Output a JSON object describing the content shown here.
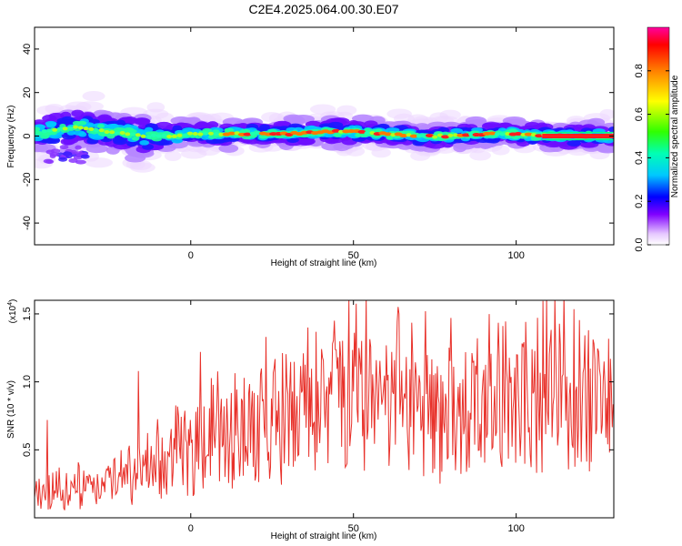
{
  "title": "C2E4.2025.064.00.30.E07",
  "chart_data": [
    {
      "type": "heatmap",
      "name": "spectrogram",
      "xlabel": "Height of straight line (km)",
      "ylabel": "Frequency (Hz)",
      "xlim": [
        -48,
        130
      ],
      "ylim": [
        -50,
        50
      ],
      "xticks": [
        0,
        50,
        100
      ],
      "yticks": [
        -40,
        -20,
        0,
        20,
        40
      ],
      "ridge_frequency": [
        [
          -45,
          2
        ],
        [
          -40,
          3
        ],
        [
          -35,
          4
        ],
        [
          -30,
          3
        ],
        [
          -25,
          2
        ],
        [
          -20,
          1
        ],
        [
          -15,
          0
        ],
        [
          -10,
          0
        ],
        [
          -5,
          0
        ],
        [
          0,
          1
        ],
        [
          10,
          1
        ],
        [
          20,
          1
        ],
        [
          30,
          1
        ],
        [
          40,
          2
        ],
        [
          50,
          2
        ],
        [
          60,
          1
        ],
        [
          70,
          0
        ],
        [
          80,
          0
        ],
        [
          90,
          1
        ],
        [
          100,
          1
        ],
        [
          110,
          0
        ],
        [
          120,
          0
        ],
        [
          130,
          0
        ]
      ],
      "colorbar": {
        "label": "Normalized spectral amplitude",
        "range": [
          0,
          1
        ],
        "ticks": [
          "0.0",
          "0.2",
          "0.4",
          "0.6",
          "0.8"
        ]
      }
    },
    {
      "type": "line",
      "name": "snr",
      "xlabel": "Height of straight line (km)",
      "ylabel": "SNR (10 * v/v)",
      "y_multiplier_label": "(x10",
      "y_multiplier_exp": "4",
      "y_multiplier_close": ")",
      "xlim": [
        -48,
        130
      ],
      "ylim": [
        0,
        1.6
      ],
      "xticks": [
        0,
        50,
        100
      ],
      "yticks": [
        "0.5",
        "1.0",
        "1.5"
      ],
      "color": "#e8312a",
      "trend": [
        [
          -48,
          0.18
        ],
        [
          -40,
          0.2
        ],
        [
          -30,
          0.22
        ],
        [
          -20,
          0.26
        ],
        [
          -10,
          0.38
        ],
        [
          0,
          0.48
        ],
        [
          10,
          0.58
        ],
        [
          20,
          0.66
        ],
        [
          30,
          0.74
        ],
        [
          40,
          0.8
        ],
        [
          50,
          0.83
        ],
        [
          60,
          0.8
        ],
        [
          70,
          0.78
        ],
        [
          80,
          0.76
        ],
        [
          90,
          0.76
        ],
        [
          100,
          0.8
        ],
        [
          110,
          0.84
        ],
        [
          120,
          0.86
        ],
        [
          130,
          0.88
        ]
      ],
      "peaks": [
        [
          -44,
          0.72
        ],
        [
          -16,
          1.08
        ],
        [
          3,
          1.22
        ],
        [
          23,
          1.33
        ],
        [
          36,
          1.4
        ],
        [
          44,
          1.45
        ],
        [
          54,
          1.62
        ],
        [
          64,
          1.5
        ],
        [
          72,
          1.52
        ],
        [
          80,
          1.47
        ],
        [
          88,
          1.32
        ],
        [
          100,
          1.2
        ],
        [
          124,
          1.28
        ]
      ]
    }
  ]
}
